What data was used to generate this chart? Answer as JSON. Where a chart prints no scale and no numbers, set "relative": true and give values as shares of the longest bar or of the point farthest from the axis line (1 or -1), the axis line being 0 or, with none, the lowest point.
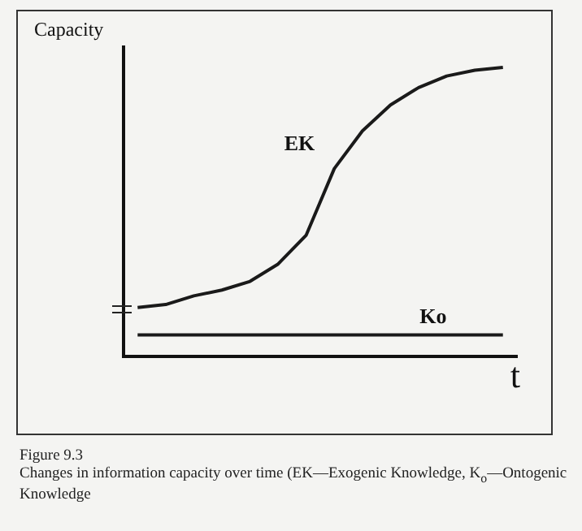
{
  "chart_data": {
    "type": "line",
    "relative": true,
    "xlabel": "t",
    "ylabel": "Capacity",
    "grid": false,
    "legend": false,
    "marker": "none",
    "line_style": "solid",
    "categories": [
      null,
      null,
      null,
      null,
      null,
      null,
      null,
      null,
      null,
      null,
      null,
      null,
      null,
      null
    ],
    "series": [
      {
        "name": "EK",
        "color": "#1a1a1a",
        "values": [
          0.17,
          0.18,
          0.21,
          0.23,
          0.26,
          0.32,
          0.42,
          0.65,
          0.78,
          0.87,
          0.93,
          0.97,
          0.99,
          1
        ]
      },
      {
        "name": "Ko",
        "color": "#1a1a1a",
        "values": [
          0.075,
          0.075,
          0.075,
          0.075,
          0.075,
          0.075,
          0.075,
          0.075,
          0.075,
          0.075,
          0.075,
          0.075,
          0.075,
          0.075
        ]
      }
    ],
    "annotations": [
      "Figure 9.3",
      "Changes in information capacity over time (EK—Exogenic Knowledge, K$_{o}$—Ontogenic Knowledge"
    ]
  }
}
